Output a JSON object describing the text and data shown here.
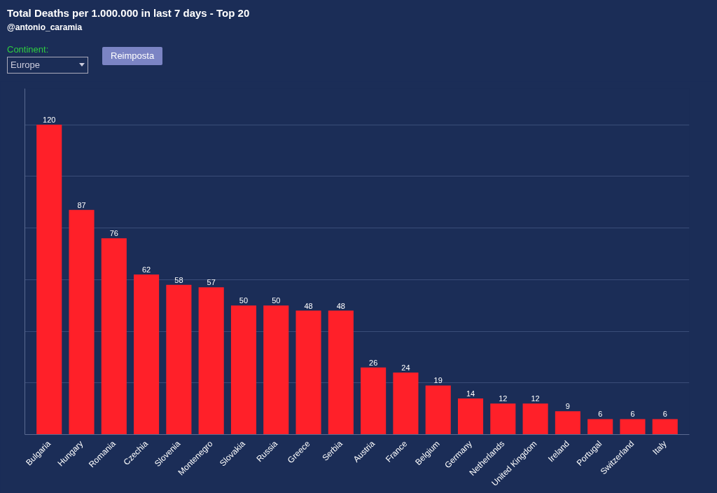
{
  "chart_data": {
    "type": "bar",
    "title": "Total Deaths per 1.000.000 in last 7 days - Top 20",
    "subtitle": "@antonio_caramia",
    "annotations": [
      "Continent:",
      "Europe",
      "Reimposta"
    ],
    "categories": [
      "Bulgaria",
      "Hungary",
      "Romania",
      "Czechia",
      "Slovenia",
      "Montenegro",
      "Slovakia",
      "Russia",
      "Greece",
      "Serbia",
      "Austria",
      "France",
      "Belgium",
      "Germany",
      "Netherlands",
      "United Kingdom",
      "Ireland",
      "Portugal",
      "Switzerland",
      "Italy"
    ],
    "values": [
      120,
      87,
      76,
      62,
      58,
      57,
      50,
      50,
      48,
      48,
      26,
      24,
      19,
      14,
      12,
      12,
      9,
      6,
      6,
      6
    ],
    "color": "#ff2029",
    "data_labels": true,
    "ylim": [
      0,
      134
    ],
    "yticks": [
      {
        "value": 0,
        "label": null
      },
      {
        "value": 20,
        "label": null
      },
      {
        "value": 40,
        "label": null
      },
      {
        "value": 60,
        "label": null
      },
      {
        "value": 80,
        "label": null
      },
      {
        "value": 100,
        "label": null
      },
      {
        "value": 120,
        "label": null
      }
    ],
    "grid": "y",
    "tick_labels": "x"
  }
}
